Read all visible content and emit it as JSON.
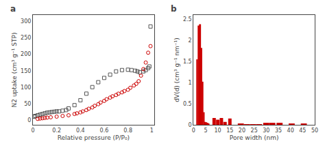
{
  "chart_data": [
    {
      "type": "scatter",
      "title": "a",
      "xlabel": "Relative pressure (P/P₀)",
      "ylabel": "N2 uptake (cm³ g⁻¹ STP)",
      "xlim": [
        0.0,
        1.02
      ],
      "xticks": [
        0,
        0.2,
        0.4,
        0.6,
        0.8,
        1
      ],
      "ylim": [
        -15,
        320
      ],
      "yticks": [
        0,
        50,
        100,
        150,
        200,
        250,
        300
      ],
      "grid": false,
      "series": [
        {
          "color": "#555555",
          "marker": "square",
          "x": [
            0.01,
            0.02,
            0.04,
            0.06,
            0.08,
            0.1,
            0.12,
            0.14,
            0.16,
            0.18,
            0.2,
            0.22,
            0.25,
            0.28,
            0.3,
            0.35,
            0.4,
            0.45,
            0.5,
            0.55,
            0.6,
            0.65,
            0.7,
            0.75,
            0.8,
            0.83,
            0.86,
            0.88,
            0.9,
            0.93,
            0.95,
            0.97,
            0.98,
            0.99
          ],
          "values": [
            10,
            12,
            14,
            16,
            18,
            20,
            22,
            23,
            24,
            25,
            26,
            26,
            28,
            30,
            35,
            45,
            60,
            80,
            100,
            115,
            128,
            138,
            148,
            152,
            153,
            152,
            150,
            148,
            145,
            148,
            152,
            158,
            163,
            285
          ]
        },
        {
          "color": "#cc0000",
          "marker": "circle",
          "x": [
            0.99,
            0.97,
            0.95,
            0.93,
            0.91,
            0.89,
            0.87,
            0.85,
            0.82,
            0.8,
            0.77,
            0.75,
            0.72,
            0.7,
            0.67,
            0.65,
            0.62,
            0.6,
            0.57,
            0.55,
            0.52,
            0.5,
            0.47,
            0.45,
            0.42,
            0.4,
            0.37,
            0.35,
            0.3,
            0.25,
            0.2,
            0.15,
            0.12,
            0.1,
            0.08,
            0.06,
            0.04
          ],
          "values": [
            225,
            205,
            175,
            155,
            135,
            118,
            110,
            105,
            98,
            92,
            88,
            84,
            80,
            76,
            72,
            68,
            63,
            58,
            53,
            48,
            43,
            38,
            34,
            30,
            26,
            23,
            20,
            18,
            14,
            12,
            10,
            8,
            7,
            6,
            5,
            4,
            3
          ]
        }
      ]
    },
    {
      "type": "bar",
      "title": "b",
      "xlabel": "Pore width (nm)",
      "ylabel": "dV(d) (cm³ g⁻¹ nm⁻¹)",
      "xlim": [
        0,
        50
      ],
      "xticks": [
        0,
        5,
        10,
        15,
        20,
        25,
        30,
        35,
        40,
        45,
        50
      ],
      "ylim": [
        0,
        2.6
      ],
      "yticks": [
        0.0,
        0.5,
        1.0,
        1.5,
        2.0,
        2.5
      ],
      "grid": false,
      "color": "#cc0000",
      "x": [
        1.5,
        2.2,
        2.8,
        3.3,
        3.8,
        4.3,
        4.8,
        5.3,
        5.8,
        6.3,
        8.5,
        10.0,
        11.5,
        13.0,
        15.0,
        19.5,
        22.0,
        24.5,
        27.0,
        30.0,
        32.5,
        35.5,
        40.5,
        45.5
      ],
      "widths": [
        0.55,
        0.55,
        0.55,
        0.55,
        0.55,
        0.55,
        0.55,
        0.55,
        0.55,
        0.55,
        1.4,
        1.4,
        1.4,
        1.4,
        1.4,
        2.5,
        2.5,
        2.5,
        2.5,
        2.5,
        2.5,
        2.5,
        2.5,
        2.5
      ],
      "values": [
        1.55,
        2.35,
        2.38,
        1.82,
        1.02,
        0.3,
        0.07,
        0.06,
        0.05,
        0.03,
        0.16,
        0.12,
        0.16,
        0.07,
        0.15,
        0.02,
        0.01,
        0.01,
        0.01,
        0.05,
        0.05,
        0.05,
        0.03,
        0.03
      ]
    }
  ]
}
